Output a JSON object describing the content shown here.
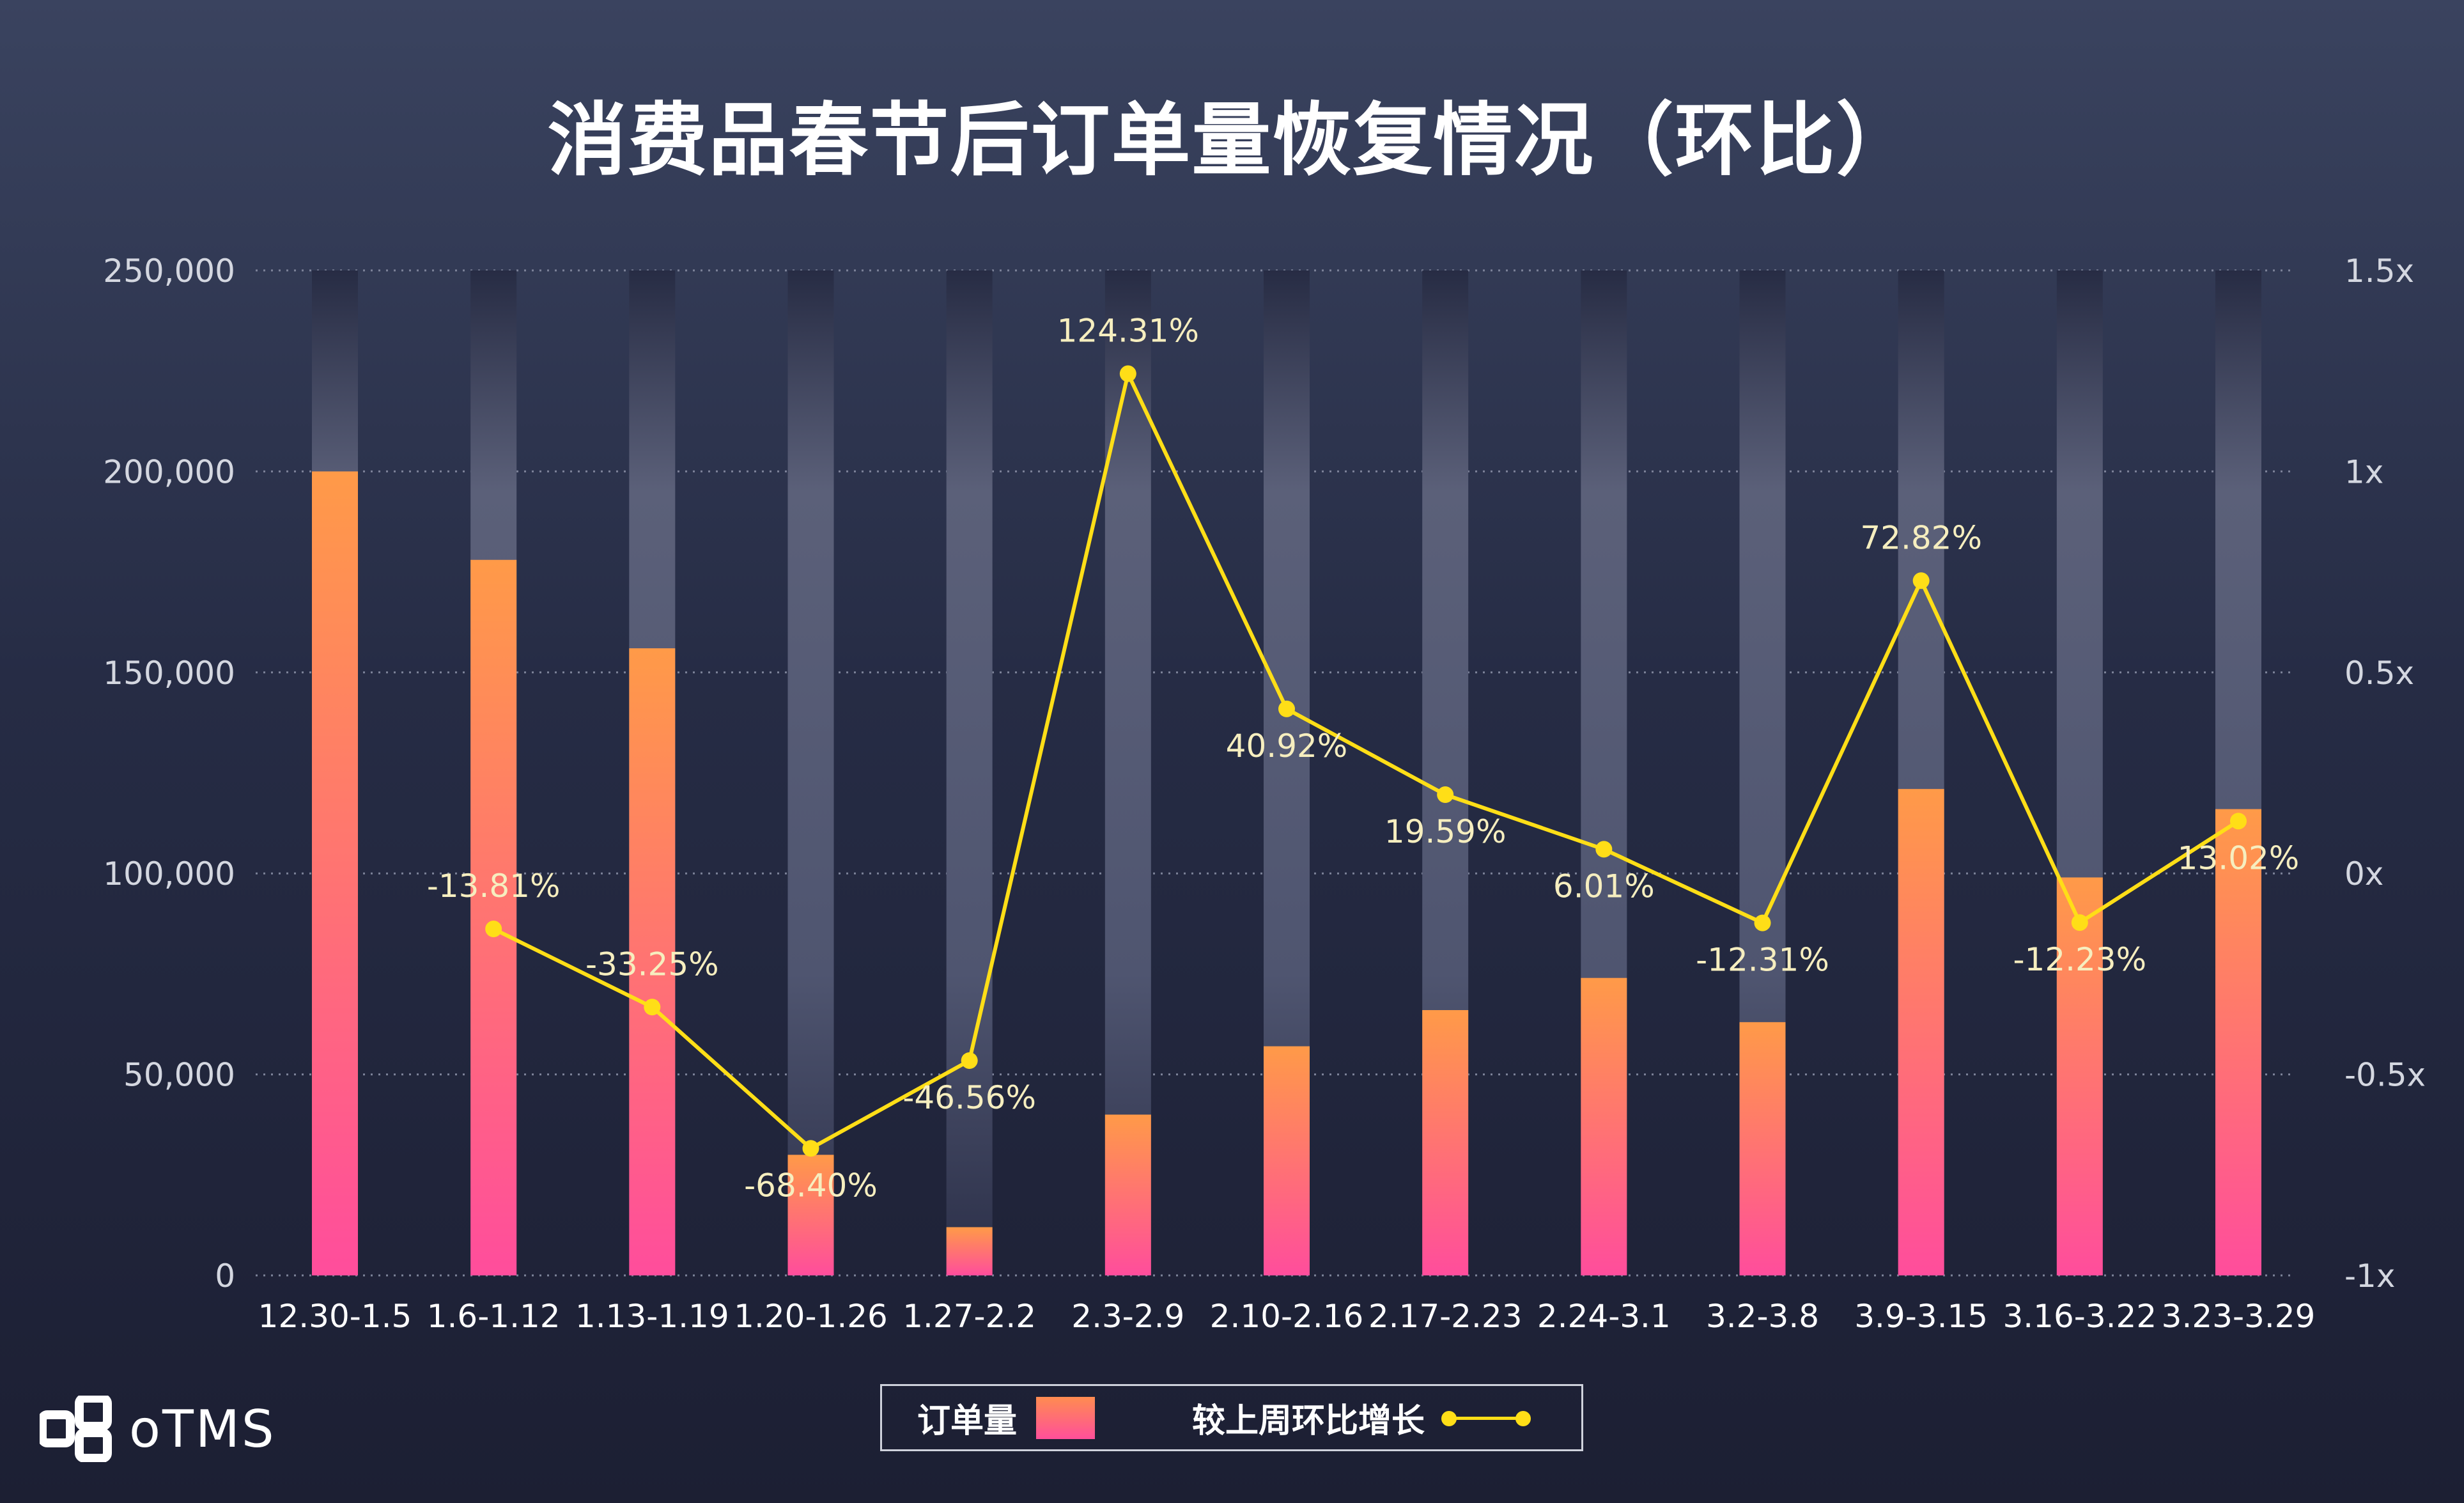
{
  "chart_data": {
    "type": "bar",
    "title": "消费品春节后订单量恢复情况（环比）",
    "categories": [
      "12.30-1.5",
      "1.6-1.12",
      "1.13-1.19",
      "1.20-1.26",
      "1.27-2.2",
      "2.3-2.9",
      "2.10-2.16",
      "2.17-2.23",
      "2.24-3.1",
      "3.2-3.8",
      "3.9-3.15",
      "3.16-3.22",
      "3.23-3.29"
    ],
    "series": [
      {
        "name": "订单量",
        "type": "bar",
        "axis": "left",
        "values": [
          200000,
          178000,
          156000,
          30000,
          12000,
          40000,
          57000,
          66000,
          74000,
          63000,
          121000,
          99000,
          116000
        ]
      },
      {
        "name": "较上周环比增长",
        "type": "line",
        "axis": "right",
        "values": [
          null,
          -0.1381,
          -0.3325,
          -0.684,
          -0.4656,
          1.2431,
          0.4092,
          0.1959,
          0.0601,
          -0.1231,
          0.7282,
          -0.1223,
          0.1302
        ],
        "labels": [
          "",
          "-13.81%",
          "-33.25%",
          "-68.40%",
          "-46.56%",
          "124.31%",
          "40.92%",
          "19.59%",
          "6.01%",
          "-12.31%",
          "72.82%",
          "-12.23%",
          "13.02%"
        ]
      }
    ],
    "y_left": {
      "ylim": [
        0,
        250000
      ],
      "ticks": [
        0,
        50000,
        100000,
        150000,
        200000,
        250000
      ],
      "tick_labels": [
        "0",
        "50,000",
        "100,000",
        "150,000",
        "200,000",
        "250,000"
      ]
    },
    "y_right": {
      "ylim": [
        -1,
        1.5
      ],
      "ticks": [
        -1,
        -0.5,
        0,
        0.5,
        1,
        1.5
      ],
      "tick_labels": [
        "-1x",
        "-0.5x",
        "0x",
        "0.5x",
        "1x",
        "1.5x"
      ]
    },
    "grid": "horizontal-dotted",
    "legend_position": "bottom-center"
  },
  "colors": {
    "bar_top": "#ff9a48",
    "bar_bottom": "#ff4d9c",
    "line": "#ffde17",
    "track": "#5a6078"
  },
  "branding": {
    "logo_icon": "otms-logo-icon",
    "logo_text": "oTMS"
  }
}
